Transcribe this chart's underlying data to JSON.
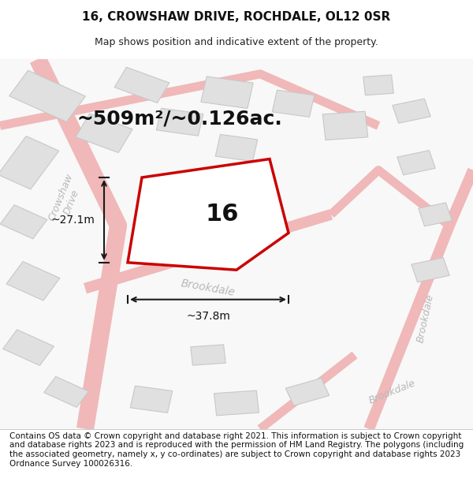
{
  "title_line1": "16, CROWSHAW DRIVE, ROCHDALE, OL12 0SR",
  "title_line2": "Map shows position and indicative extent of the property.",
  "footer_text": "Contains OS data © Crown copyright and database right 2021. This information is subject to Crown copyright and database rights 2023 and is reproduced with the permission of HM Land Registry. The polygons (including the associated geometry, namely x, y co-ordinates) are subject to Crown copyright and database rights 2023 Ordnance Survey 100026316.",
  "area_label": "~509m²/~0.126ac.",
  "width_label": "~37.8m",
  "height_label": "~27.1m",
  "number_label": "16",
  "map_bg": "#ffffff",
  "road_color": "#f0b8b8",
  "building_color": "#e0e0e0",
  "building_edge": "#c8c8c8",
  "subject_fill": "#ffffff",
  "subject_edge": "#cc0000",
  "dim_line_color": "#1a1a1a",
  "road_label_color": "#b8b8b8",
  "title_fontsize": 11,
  "subtitle_fontsize": 9,
  "footer_fontsize": 7.5,
  "area_fontsize": 18,
  "number_fontsize": 22,
  "dim_fontsize": 10,
  "road_fontsize": 11
}
